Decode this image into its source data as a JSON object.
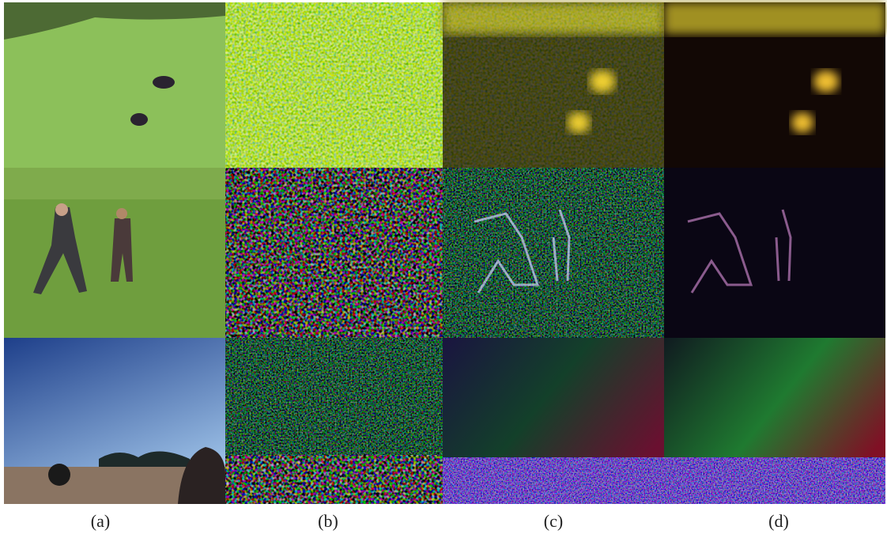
{
  "figure": {
    "panel_labels": [
      "(a)",
      "(b)",
      "(c)",
      "(d)"
    ]
  }
}
